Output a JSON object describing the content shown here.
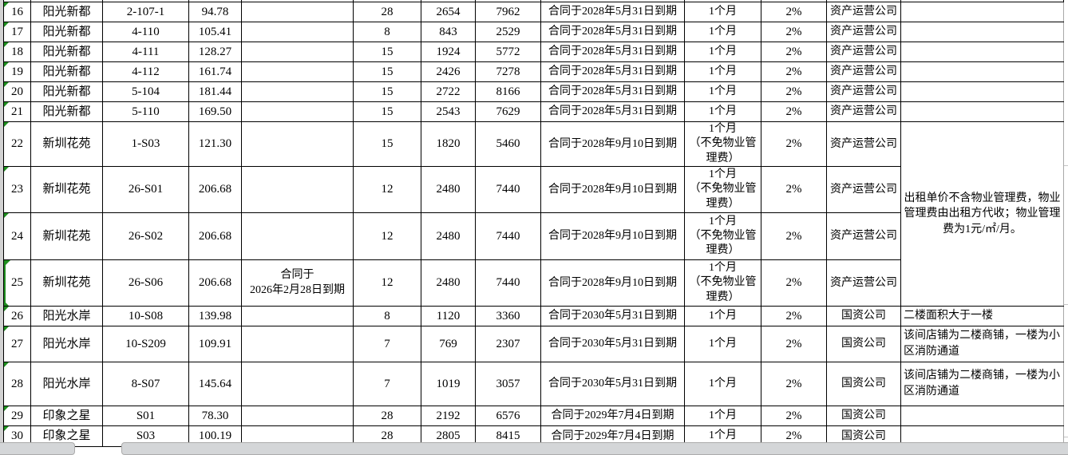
{
  "colors": {
    "grid_border": "#000000",
    "indicator_green": "#1f8f1f",
    "chrome_gray": "#d4d6d8",
    "outer_gridline": "#c6c6c6"
  },
  "table": {
    "columns": [
      "row_no",
      "property",
      "unit",
      "area",
      "contract_remark",
      "count",
      "value1",
      "value2",
      "contract_expiry",
      "deposit",
      "commission_rate",
      "company",
      "note"
    ],
    "rows": [
      {
        "row_no": "16",
        "property": "阳光新都",
        "unit": "2-107-1",
        "area": "94.78",
        "contract_remark": "",
        "count": "28",
        "value1": "2654",
        "value2": "7962",
        "contract_expiry": "合同于2028年5月31日到期",
        "deposit": "1个月",
        "commission_rate": "2%",
        "company": "资产运营公司",
        "note": ""
      },
      {
        "row_no": "17",
        "property": "阳光新都",
        "unit": "4-110",
        "area": "105.41",
        "contract_remark": "",
        "count": "8",
        "value1": "843",
        "value2": "2529",
        "contract_expiry": "合同于2028年5月31日到期",
        "deposit": "1个月",
        "commission_rate": "2%",
        "company": "资产运营公司",
        "note": ""
      },
      {
        "row_no": "18",
        "property": "阳光新都",
        "unit": "4-111",
        "area": "128.27",
        "contract_remark": "",
        "count": "15",
        "value1": "1924",
        "value2": "5772",
        "contract_expiry": "合同于2028年5月31日到期",
        "deposit": "1个月",
        "commission_rate": "2%",
        "company": "资产运营公司",
        "note": ""
      },
      {
        "row_no": "19",
        "property": "阳光新都",
        "unit": "4-112",
        "area": "161.74",
        "contract_remark": "",
        "count": "15",
        "value1": "2426",
        "value2": "7278",
        "contract_expiry": "合同于2028年5月31日到期",
        "deposit": "1个月",
        "commission_rate": "2%",
        "company": "资产运营公司",
        "note": ""
      },
      {
        "row_no": "20",
        "property": "阳光新都",
        "unit": "5-104",
        "area": "181.44",
        "contract_remark": "",
        "count": "15",
        "value1": "2722",
        "value2": "8166",
        "contract_expiry": "合同于2028年5月31日到期",
        "deposit": "1个月",
        "commission_rate": "2%",
        "company": "资产运营公司",
        "note": ""
      },
      {
        "row_no": "21",
        "property": "阳光新都",
        "unit": "5-110",
        "area": "169.50",
        "contract_remark": "",
        "count": "15",
        "value1": "2543",
        "value2": "7629",
        "contract_expiry": "合同于2028年5月31日到期",
        "deposit": "1个月",
        "commission_rate": "2%",
        "company": "资产运营公司",
        "note": ""
      },
      {
        "row_no": "22",
        "property": "新圳花苑",
        "unit": "1-S03",
        "area": "121.30",
        "contract_remark": "",
        "count": "15",
        "value1": "1820",
        "value2": "5460",
        "contract_expiry": "合同于2028年9月10日到期",
        "deposit": "1个月\n（不免物业管理费）",
        "commission_rate": "2%",
        "company": "资产运营公司",
        "note": "出租单价不含物业管理费，物业管理费由出租方代收；物业管理费为1元/㎡/月。",
        "note_rowspan": 4
      },
      {
        "row_no": "23",
        "property": "新圳花苑",
        "unit": "26-S01",
        "area": "206.68",
        "contract_remark": "",
        "count": "12",
        "value1": "2480",
        "value2": "7440",
        "contract_expiry": "合同于2028年9月10日到期",
        "deposit": "1个月\n（不免物业管理费）",
        "commission_rate": "2%",
        "company": "资产运营公司",
        "note": null
      },
      {
        "row_no": "24",
        "property": "新圳花苑",
        "unit": "26-S02",
        "area": "206.68",
        "contract_remark": "",
        "count": "12",
        "value1": "2480",
        "value2": "7440",
        "contract_expiry": "合同于2028年9月10日到期",
        "deposit": "1个月\n（不免物业管理费）",
        "commission_rate": "2%",
        "company": "资产运营公司",
        "note": null
      },
      {
        "row_no": "25",
        "property": "新圳花苑",
        "unit": "26-S06",
        "area": "206.68",
        "contract_remark": "合同于\n2026年2月28日到期",
        "count": "12",
        "value1": "2480",
        "value2": "7440",
        "contract_expiry": "合同于2028年9月10日到期",
        "deposit": "1个月\n（不免物业管理费）",
        "commission_rate": "2%",
        "company": "资产运营公司",
        "note": null,
        "marker": "green-range"
      },
      {
        "row_no": "26",
        "property": "阳光水岸",
        "unit": "10-S08",
        "area": "139.98",
        "contract_remark": "",
        "count": "8",
        "value1": "1120",
        "value2": "3360",
        "contract_expiry": "合同于2030年5月31日到期",
        "deposit": "1个月",
        "commission_rate": "2%",
        "company": "国资公司",
        "note": "二楼面积大于一楼"
      },
      {
        "row_no": "27",
        "property": "阳光水岸",
        "unit": "10-S209",
        "area": "109.91",
        "contract_remark": "",
        "count": "7",
        "value1": "769",
        "value2": "2307",
        "contract_expiry": "合同于2030年5月31日到期",
        "deposit": "1个月",
        "commission_rate": "2%",
        "company": "国资公司",
        "note": "该间店铺为二楼商铺，一楼为小区消防通道"
      },
      {
        "row_no": "28",
        "property": "阳光水岸",
        "unit": "8-S07",
        "area": "145.64",
        "contract_remark": "",
        "count": "7",
        "value1": "1019",
        "value2": "3057",
        "contract_expiry": "合同于2030年5月31日到期",
        "deposit": "1个月",
        "commission_rate": "2%",
        "company": "国资公司",
        "note": "该间店铺为二楼商铺，一楼为小区消防通道"
      },
      {
        "row_no": "29",
        "property": "印象之星",
        "unit": "S01",
        "area": "78.30",
        "contract_remark": "",
        "count": "28",
        "value1": "2192",
        "value2": "6576",
        "contract_expiry": "合同于2029年7月4日到期",
        "deposit": "1个月",
        "commission_rate": "2%",
        "company": "国资公司",
        "note": ""
      },
      {
        "row_no": "30",
        "property": "印象之星",
        "unit": "S03",
        "area": "100.19",
        "contract_remark": "",
        "count": "28",
        "value1": "2805",
        "value2": "8415",
        "contract_expiry": "合同于2029年7月4日到期",
        "deposit": "1个月",
        "commission_rate": "2%",
        "company": "国资公司",
        "note": ""
      }
    ]
  }
}
